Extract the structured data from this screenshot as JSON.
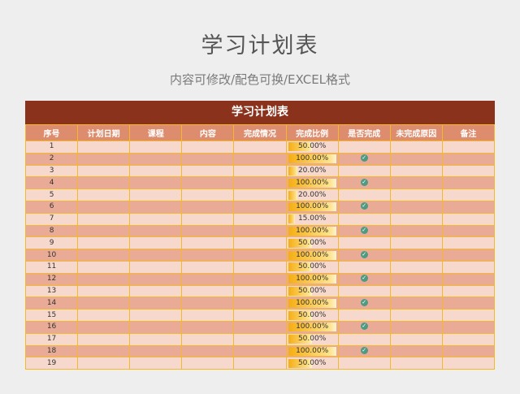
{
  "page": {
    "title": "学习计划表",
    "subtitle": "内容可修改/配色可换/EXCEL格式"
  },
  "sheet": {
    "title": "学习计划表",
    "colors": {
      "title_bar": "#8a321c",
      "header": "#de8c6e",
      "row_odd": "#f6d8cc",
      "row_even": "#e9ab96",
      "border": "#f5b82a",
      "bar": "#f5ae14",
      "check": "#4e9a82"
    },
    "columns": [
      "序号",
      "计划日期",
      "课程",
      "内容",
      "完成情况",
      "完成比例",
      "是否完成",
      "未完成原因",
      "备注"
    ],
    "rows": [
      {
        "no": "1",
        "ratio": "50.00%",
        "pct": 50,
        "done": false
      },
      {
        "no": "2",
        "ratio": "100.00%",
        "pct": 100,
        "done": true
      },
      {
        "no": "3",
        "ratio": "20.00%",
        "pct": 20,
        "done": false
      },
      {
        "no": "4",
        "ratio": "100.00%",
        "pct": 100,
        "done": true
      },
      {
        "no": "5",
        "ratio": "20.00%",
        "pct": 20,
        "done": false
      },
      {
        "no": "6",
        "ratio": "100.00%",
        "pct": 100,
        "done": true
      },
      {
        "no": "7",
        "ratio": "15.00%",
        "pct": 15,
        "done": false
      },
      {
        "no": "8",
        "ratio": "100.00%",
        "pct": 100,
        "done": true
      },
      {
        "no": "9",
        "ratio": "50.00%",
        "pct": 50,
        "done": false
      },
      {
        "no": "10",
        "ratio": "100.00%",
        "pct": 100,
        "done": true
      },
      {
        "no": "11",
        "ratio": "50.00%",
        "pct": 50,
        "done": false
      },
      {
        "no": "12",
        "ratio": "100.00%",
        "pct": 100,
        "done": true
      },
      {
        "no": "13",
        "ratio": "50.00%",
        "pct": 50,
        "done": false
      },
      {
        "no": "14",
        "ratio": "100.00%",
        "pct": 100,
        "done": true
      },
      {
        "no": "15",
        "ratio": "50.00%",
        "pct": 50,
        "done": false
      },
      {
        "no": "16",
        "ratio": "100.00%",
        "pct": 100,
        "done": true
      },
      {
        "no": "17",
        "ratio": "50.00%",
        "pct": 50,
        "done": false
      },
      {
        "no": "18",
        "ratio": "100.00%",
        "pct": 100,
        "done": true
      },
      {
        "no": "19",
        "ratio": "50.00%",
        "pct": 50,
        "done": false
      }
    ],
    "check_icon": "check-circle-icon"
  }
}
